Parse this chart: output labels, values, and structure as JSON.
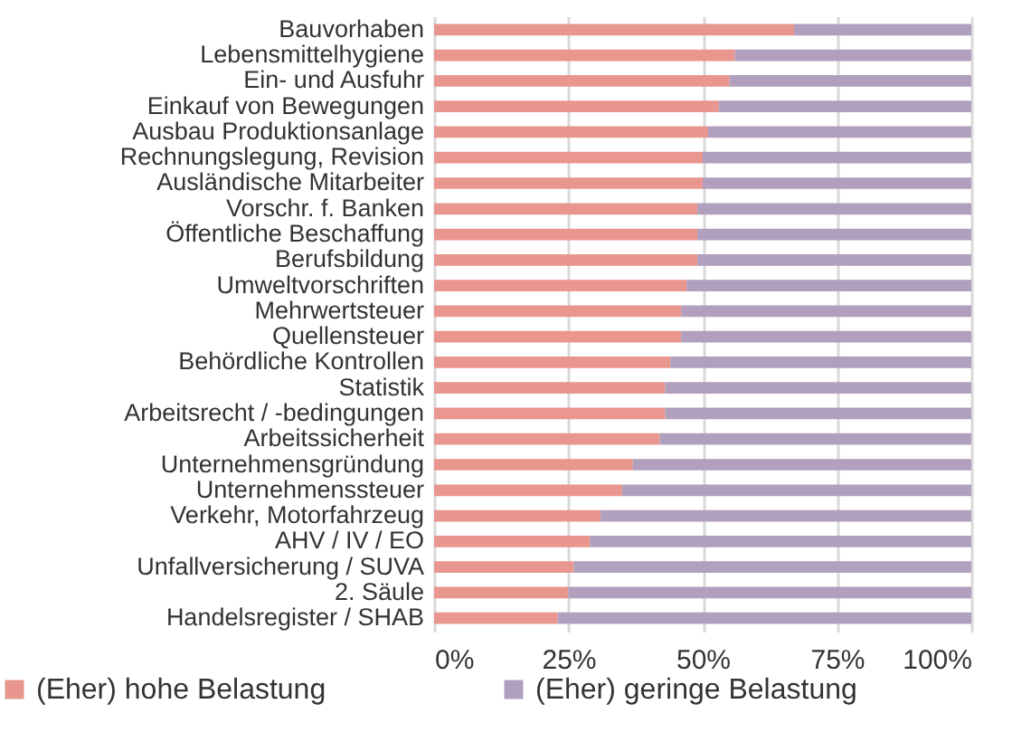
{
  "chart_data": {
    "type": "bar",
    "orientation": "horizontal",
    "stacked": true,
    "categories": [
      "Bauvorhaben",
      "Lebensmittelhygiene",
      "Ein- und Ausfuhr",
      "Einkauf von Bewegungen",
      "Ausbau Produktionsanlage",
      "Rechnungslegung, Revision",
      "Ausländische Mitarbeiter",
      "Vorschr. f. Banken",
      "Öffentliche Beschaffung",
      "Berufsbildung",
      "Umweltvorschriften",
      "Mehrwertsteuer",
      "Quellensteuer",
      "Behördliche Kontrollen",
      "Statistik",
      "Arbeitsrecht / -bedingungen",
      "Arbeitssicherheit",
      "Unternehmensgründung",
      "Unternehmenssteuer",
      "Verkehr, Motorfahrzeug",
      "AHV / IV / EO",
      "Unfallversicherung / SUVA",
      "2. Säule",
      "Handelsregister / SHAB"
    ],
    "series": [
      {
        "name": "(Eher) hohe Belastung",
        "color": "#e8968e",
        "values": [
          67,
          56,
          55,
          53,
          51,
          50,
          50,
          49,
          49,
          49,
          47,
          46,
          46,
          44,
          43,
          43,
          42,
          37,
          35,
          31,
          29,
          26,
          25,
          23
        ]
      },
      {
        "name": "(Eher) geringe Belastung",
        "color": "#b09fbd",
        "values": [
          33,
          44,
          45,
          47,
          49,
          50,
          50,
          51,
          51,
          51,
          53,
          54,
          54,
          56,
          57,
          57,
          58,
          63,
          65,
          69,
          71,
          74,
          75,
          77
        ]
      }
    ],
    "xlim": [
      0,
      100
    ],
    "xticks": [
      {
        "value": 0,
        "label": "0%"
      },
      {
        "value": 25,
        "label": "25%"
      },
      {
        "value": 50,
        "label": "50%"
      },
      {
        "value": 75,
        "label": "75%"
      },
      {
        "value": 100,
        "label": "100%"
      }
    ],
    "grid": "x",
    "legend": "bottom"
  }
}
